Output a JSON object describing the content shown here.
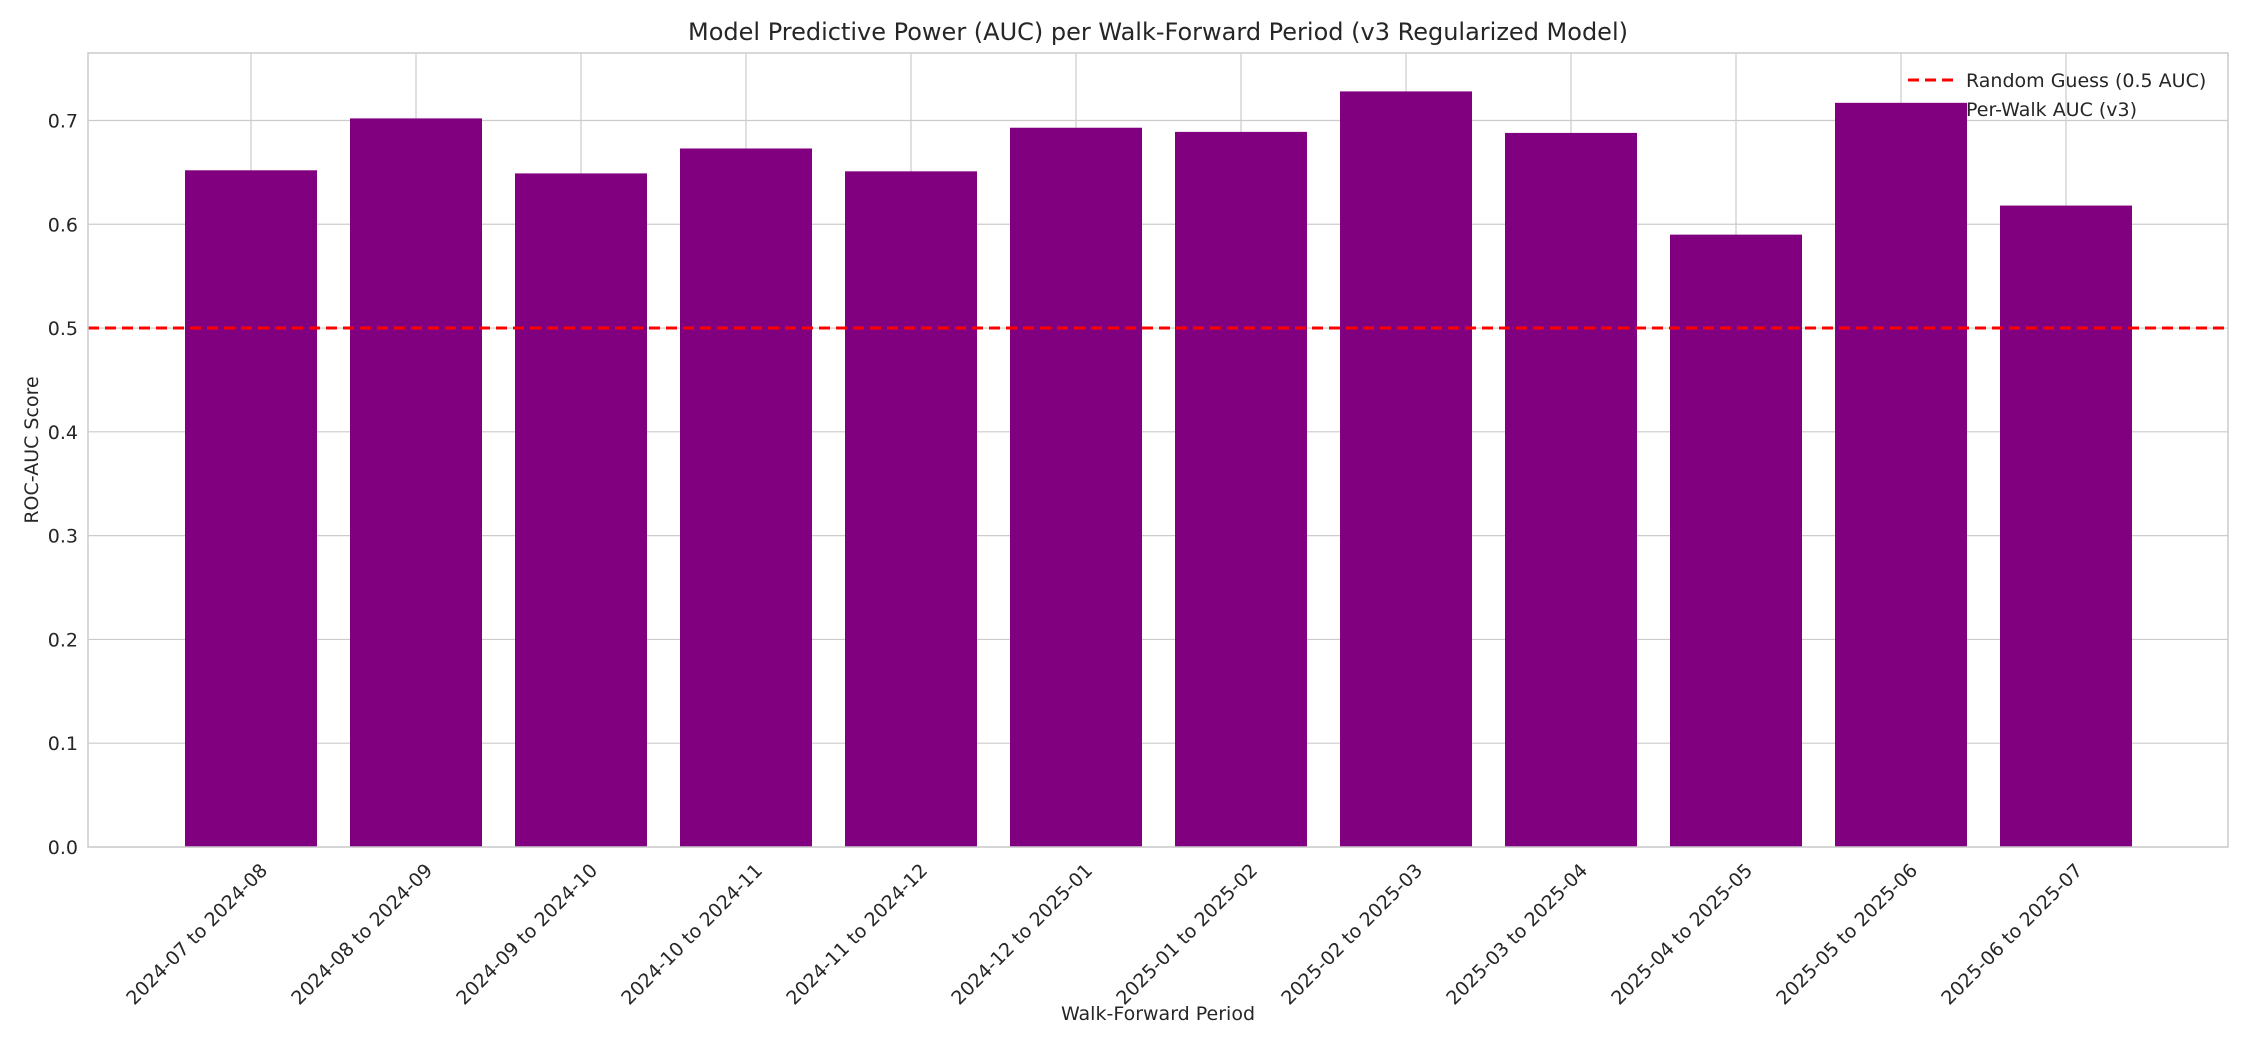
{
  "chart_data": {
    "type": "bar",
    "title": "Model Predictive Power (AUC) per Walk-Forward Period (v3 Regularized Model)",
    "xlabel": "Walk-Forward Period",
    "ylabel": "ROC-AUC Score",
    "categories": [
      "2024-07 to 2024-08",
      "2024-08 to 2024-09",
      "2024-09 to 2024-10",
      "2024-10 to 2024-11",
      "2024-11 to 2024-12",
      "2024-12 to 2025-01",
      "2025-01 to 2025-02",
      "2025-02 to 2025-03",
      "2025-03 to 2025-04",
      "2025-04 to 2025-05",
      "2025-05 to 2025-06",
      "2025-06 to 2025-07"
    ],
    "series": [
      {
        "name": "Per-Walk AUC (v3)",
        "color": "#800080",
        "values": [
          0.652,
          0.702,
          0.649,
          0.673,
          0.651,
          0.693,
          0.689,
          0.728,
          0.688,
          0.59,
          0.717,
          0.618
        ]
      }
    ],
    "reference_line": {
      "name": "Random Guess (0.5 AUC)",
      "value": 0.5,
      "color": "#ff0000",
      "style": "dashed"
    },
    "ylim": [
      0,
      0.765
    ],
    "yticks": [
      "0.0",
      "0.1",
      "0.2",
      "0.3",
      "0.4",
      "0.5",
      "0.6",
      "0.7"
    ],
    "grid": true,
    "legend_position": "top-right"
  }
}
